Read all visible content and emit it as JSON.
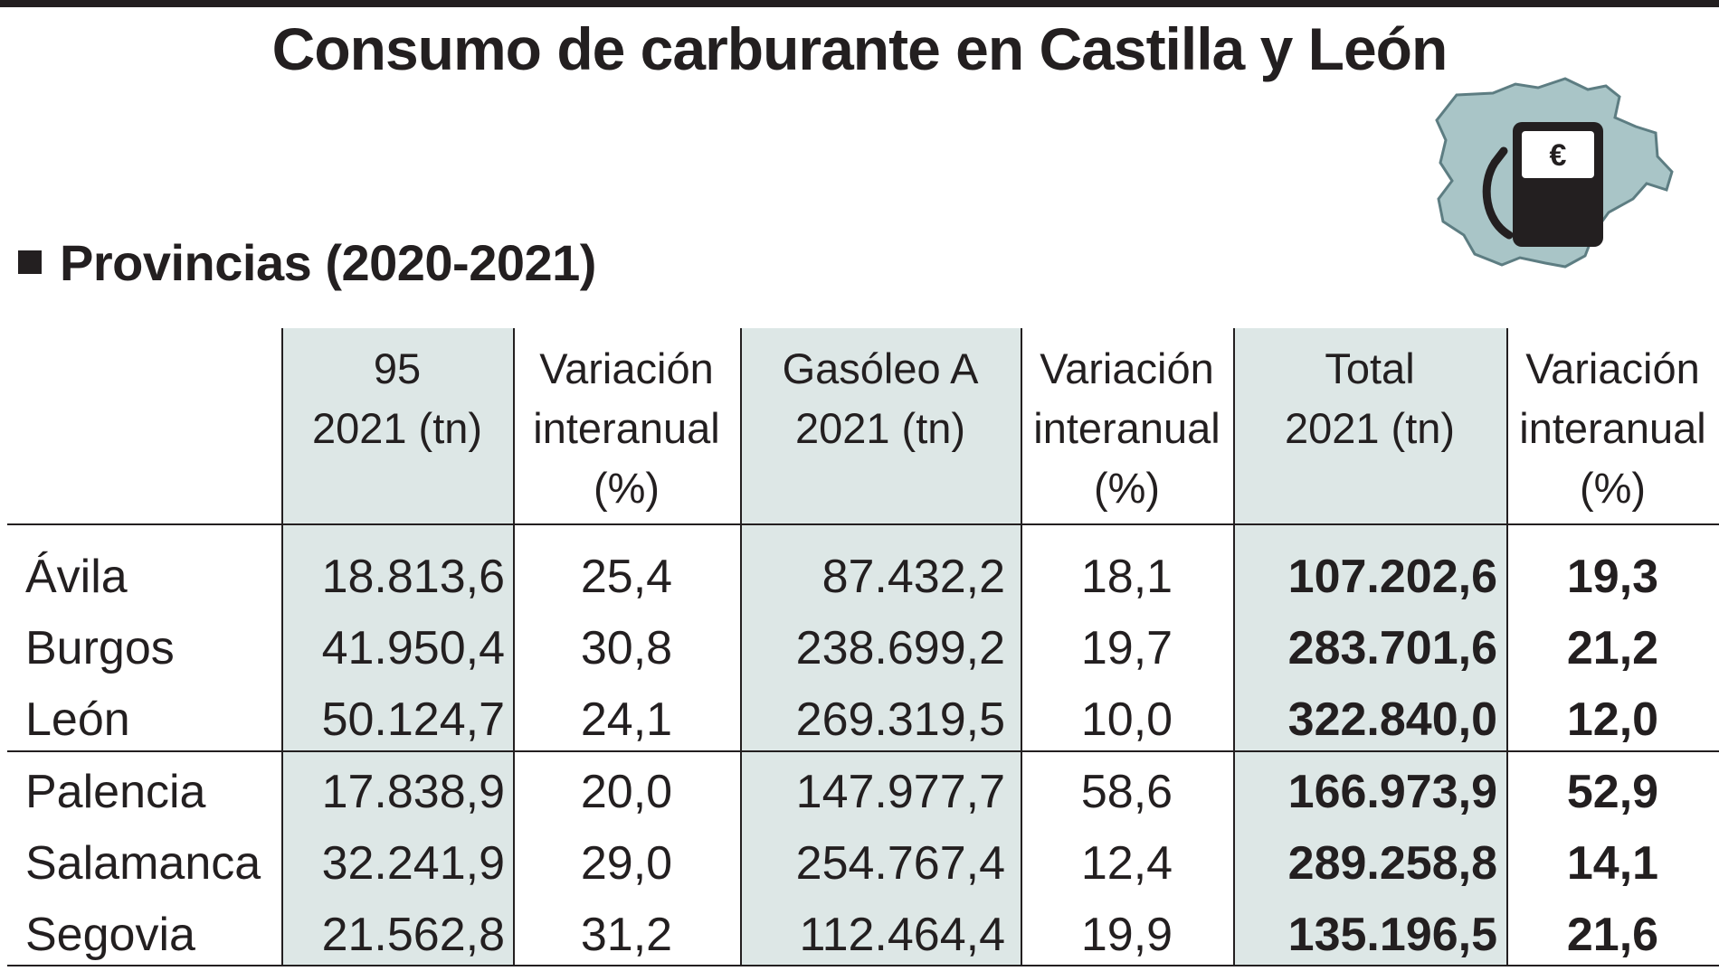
{
  "title": "Consumo de carburante en Castilla y León",
  "section_label": "Provincias (2020-2021)",
  "logo": {
    "icon": "fuel-pump-map-icon",
    "symbol": "€",
    "map_color": "#a9c5c7",
    "pump_color": "#231f20"
  },
  "colors": {
    "shaded_column": "#dde7e6",
    "text": "#231f20"
  },
  "table": {
    "headers": [
      [
        "95",
        "2021 (tn)"
      ],
      [
        "Variación",
        "interanual",
        "(%)"
      ],
      [
        "Gasóleo A",
        "2021 (tn)"
      ],
      [
        "Variación",
        "interanual",
        "(%)"
      ],
      [
        "Total",
        "2021 (tn)"
      ],
      [
        "Variación",
        "interanual",
        "(%)"
      ]
    ],
    "rows": [
      {
        "province": "Ávila",
        "g95": "18.813,6",
        "var95": "25,4",
        "gasoleo": "87.432,2",
        "varGas": "18,1",
        "total": "107.202,6",
        "varTotal": "19,3"
      },
      {
        "province": "Burgos",
        "g95": "41.950,4",
        "var95": "30,8",
        "gasoleo": "238.699,2",
        "varGas": "19,7",
        "total": "283.701,6",
        "varTotal": "21,2"
      },
      {
        "province": "León",
        "g95": "50.124,7",
        "var95": "24,1",
        "gasoleo": "269.319,5",
        "varGas": "10,0",
        "total": "322.840,0",
        "varTotal": "12,0"
      },
      {
        "province": "Palencia",
        "g95": "17.838,9",
        "var95": "20,0",
        "gasoleo": "147.977,7",
        "varGas": "58,6",
        "total": "166.973,9",
        "varTotal": "52,9"
      },
      {
        "province": "Salamanca",
        "g95": "32.241,9",
        "var95": "29,0",
        "gasoleo": "254.767,4",
        "varGas": "12,4",
        "total": "289.258,8",
        "varTotal": "14,1"
      },
      {
        "province": "Segovia",
        "g95": "21.562,8",
        "var95": "31,2",
        "gasoleo": "112.464,4",
        "varGas": "19,9",
        "total": "135.196,5",
        "varTotal": "21,6"
      }
    ]
  }
}
